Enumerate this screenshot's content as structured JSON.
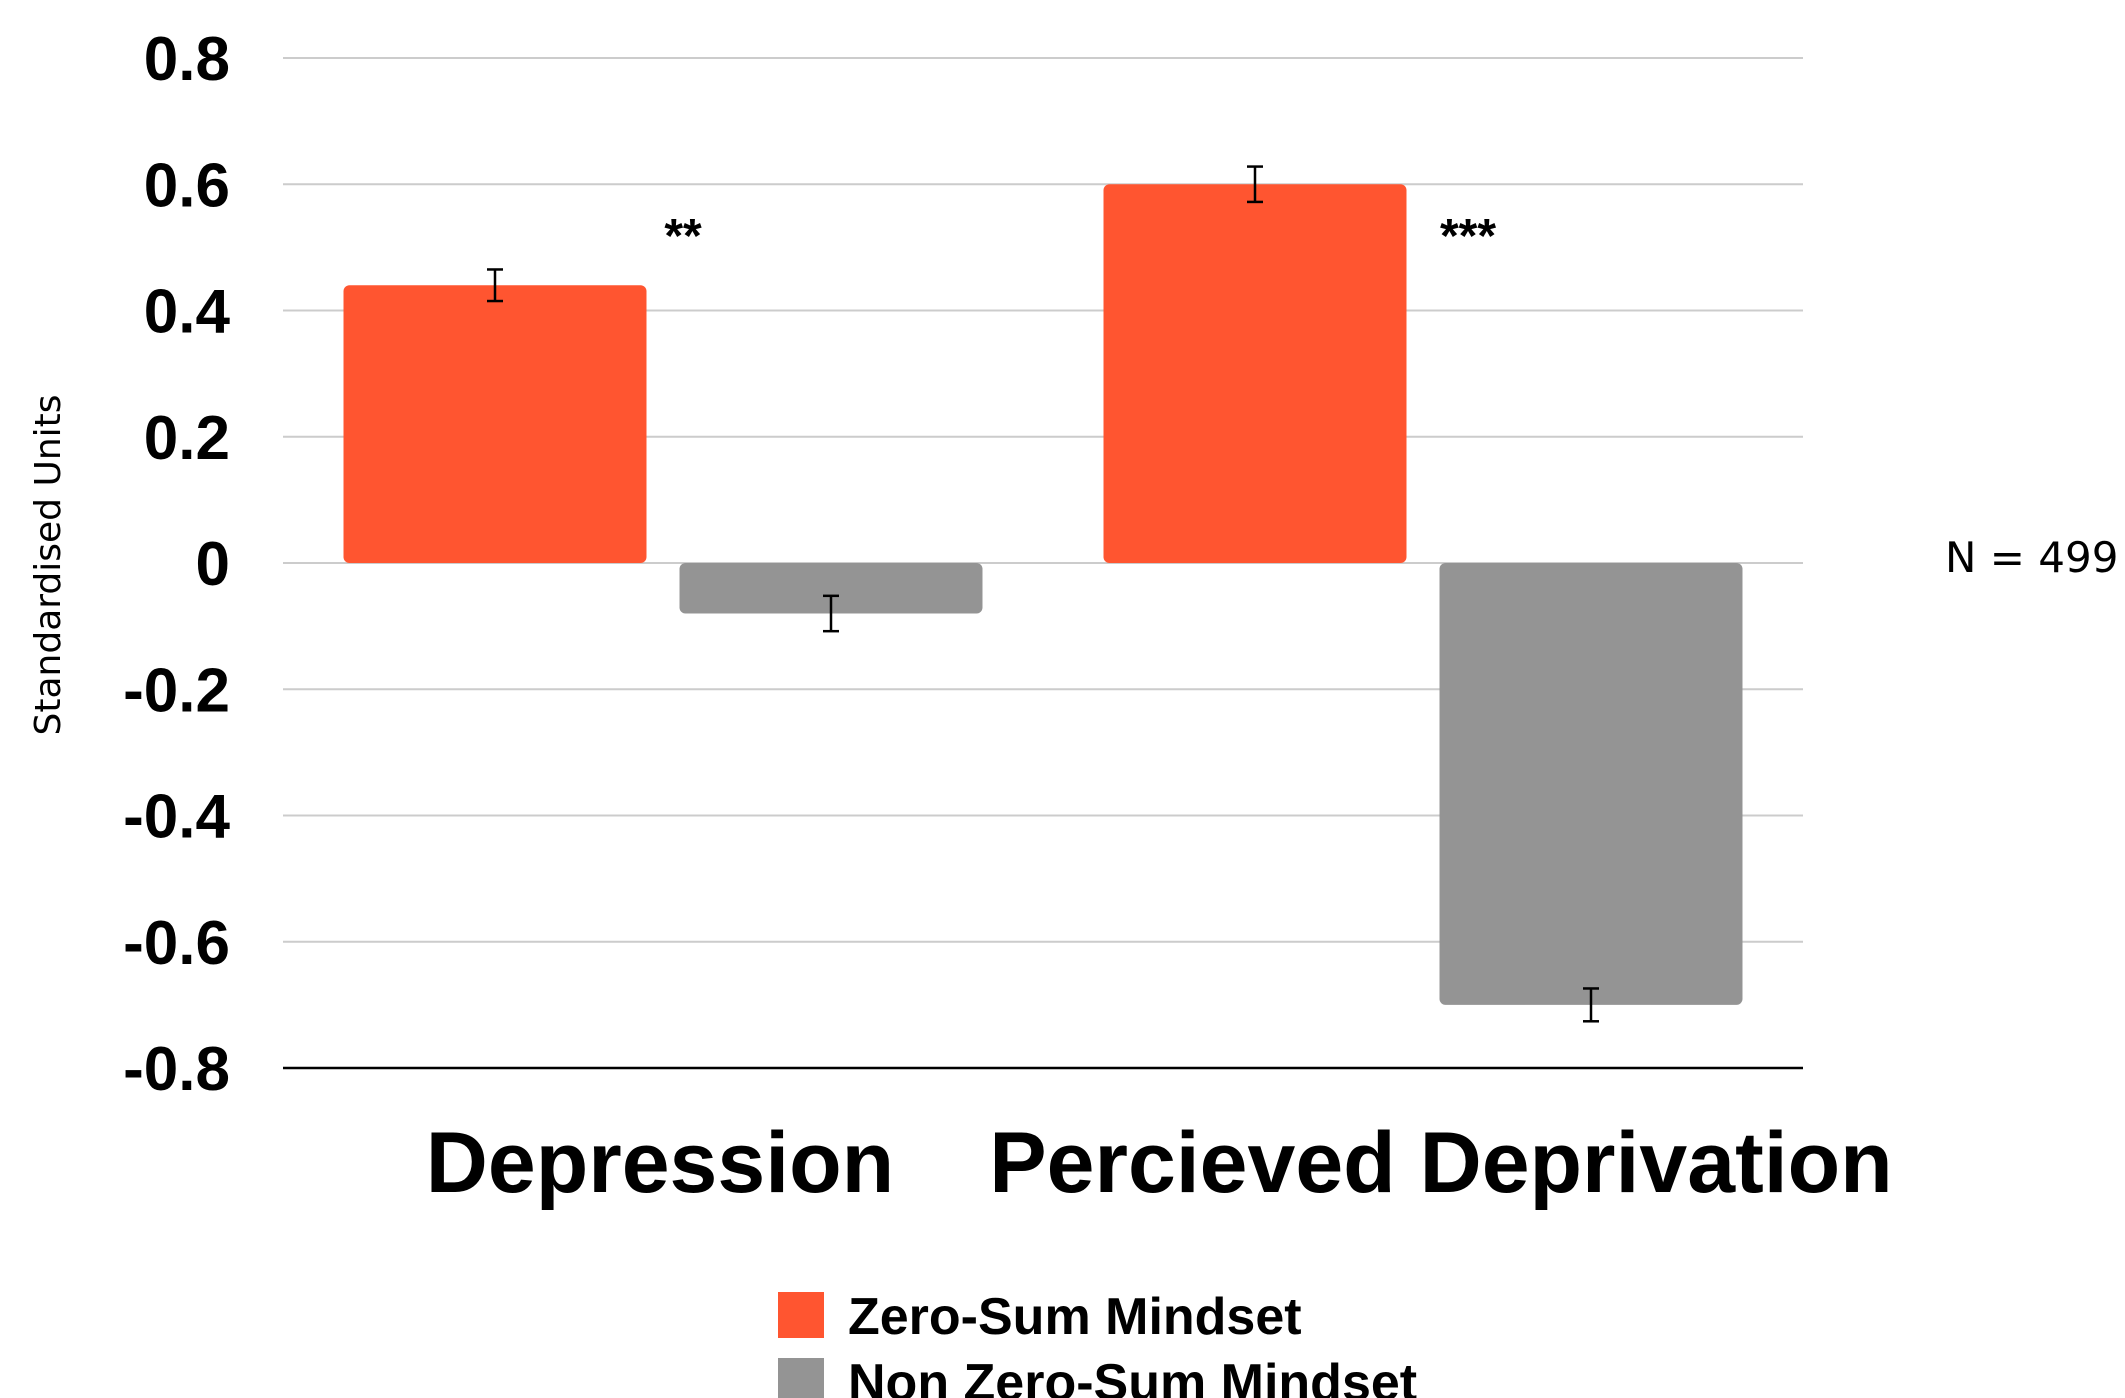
{
  "chart_data": {
    "type": "bar",
    "title": "",
    "xlabel": "",
    "ylabel": "Standardised Units",
    "ylim": [
      -0.8,
      0.8
    ],
    "yticks": [
      0.8,
      0.6,
      0.4,
      0.2,
      0,
      -0.2,
      -0.4,
      -0.6,
      -0.8
    ],
    "ytick_labels": [
      "0.8",
      "0.6",
      "0.4",
      "0.2",
      "0",
      "-0.2",
      "-0.4",
      "-0.6",
      "-0.8"
    ],
    "categories": [
      "Depression",
      "Percieved Deprivation"
    ],
    "series": [
      {
        "name": "Zero-Sum Mindset",
        "color": "#FF5530",
        "values": [
          0.44,
          0.6
        ],
        "errors": [
          0.025,
          0.028
        ]
      },
      {
        "name": "Non Zero-Sum Mindset",
        "color": "#949494",
        "values": [
          -0.08,
          -0.7
        ],
        "errors": [
          0.028,
          0.026
        ]
      }
    ],
    "significance": [
      "**",
      "***"
    ],
    "annotation": "N = 499",
    "grid": true,
    "legend_position": "bottom"
  }
}
